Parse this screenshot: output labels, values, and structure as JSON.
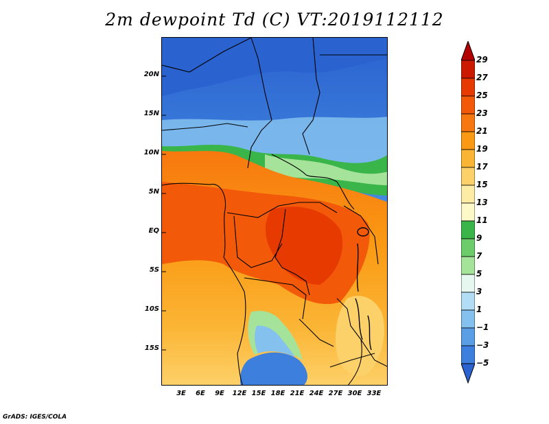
{
  "title": "2m dewpoint Td (C) VT:2019112112",
  "credit": "GrADS: IGES/COLA",
  "map": {
    "lat_ticks": [
      "20N",
      "15N",
      "10N",
      "5N",
      "EQ",
      "5S",
      "10S",
      "15S"
    ],
    "lon_ticks": [
      "3E",
      "6E",
      "9E",
      "12E",
      "15E",
      "18E",
      "21E",
      "24E",
      "27E",
      "30E",
      "33E"
    ]
  },
  "colorbar": {
    "labels": [
      "29",
      "27",
      "25",
      "23",
      "21",
      "19",
      "17",
      "15",
      "13",
      "11",
      "9",
      "7",
      "5",
      "3",
      "1",
      "−1",
      "−3",
      "−5"
    ],
    "colors": [
      "#b30000",
      "#cc1a00",
      "#e63a00",
      "#f25a0a",
      "#f7780f",
      "#fa9a14",
      "#fbb535",
      "#fdd16a",
      "#fdeca5",
      "#fdf8c8",
      "#39b54a",
      "#6dcc6a",
      "#a6e39a",
      "#e6f7f0",
      "#b3dcf5",
      "#84c1ef",
      "#5a9fe6",
      "#3d7fdc",
      "#2a62cf"
    ]
  }
}
